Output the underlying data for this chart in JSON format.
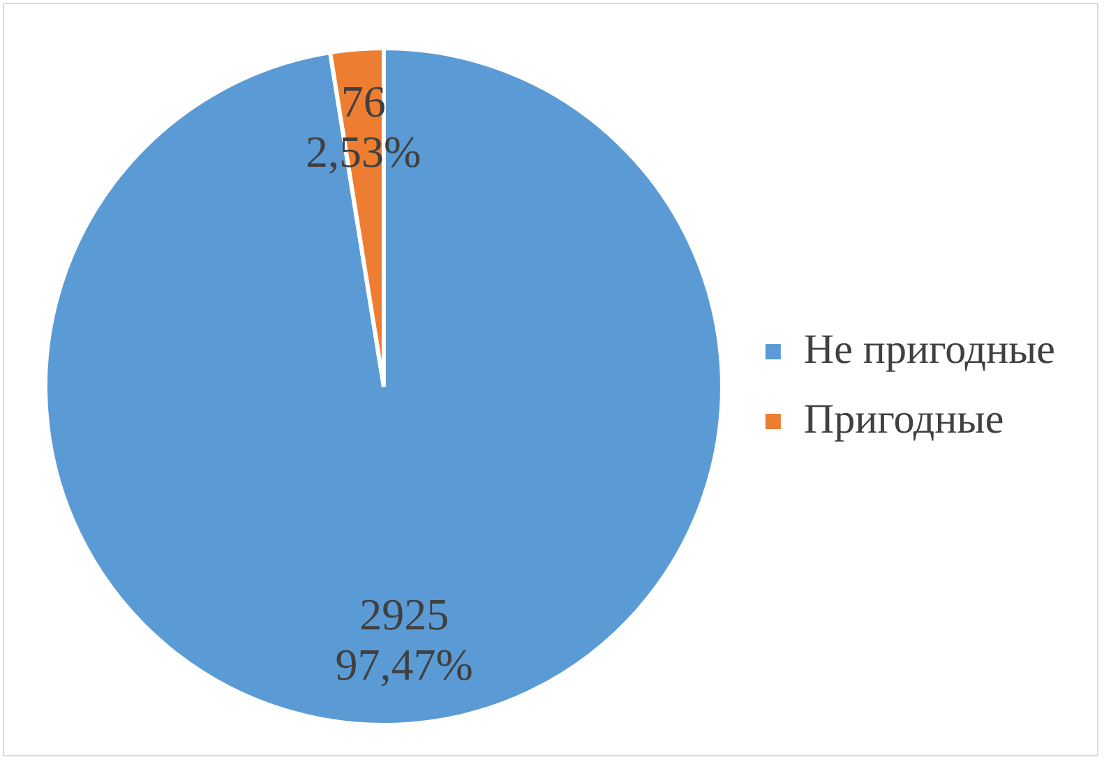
{
  "chart_data": {
    "type": "pie",
    "categories": [
      "Не пригодные",
      "Пригодные"
    ],
    "values": [
      2925,
      76
    ],
    "colors": [
      "#5b9bd5",
      "#ed7d31"
    ],
    "value_labels": [
      "2925\n97,47%",
      "76\n2,53%"
    ],
    "legend": "right"
  }
}
